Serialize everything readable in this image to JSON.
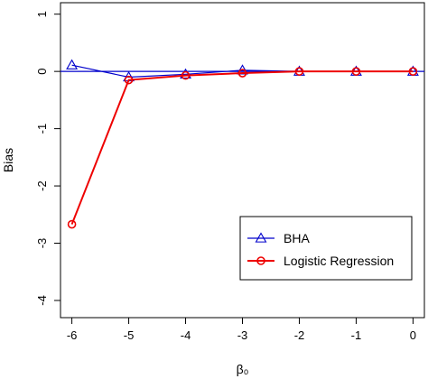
{
  "chart_data": {
    "type": "line",
    "xlabel": "β₀",
    "ylabel": "Bias",
    "x": [
      -6,
      -5,
      -4,
      -3,
      -2,
      -1,
      0
    ],
    "xlim": [
      -6.2,
      0.2
    ],
    "ylim": [
      -4.3,
      1.2
    ],
    "xticks": [
      "-6",
      "-5",
      "-4",
      "-3",
      "-2",
      "-1",
      "0"
    ],
    "yticks": [
      "1",
      "0",
      "-1",
      "-2",
      "-3",
      "-4"
    ],
    "reference_line_y": 0,
    "grid": false,
    "legend_position": "bottom-right",
    "series": [
      {
        "name": "BHA",
        "color": "#0000cc",
        "marker": "triangle",
        "values": [
          0.11,
          -0.1,
          -0.05,
          0.02,
          0.0,
          0.0,
          0.0
        ]
      },
      {
        "name": "Logistic Regression",
        "color": "#ee0000",
        "marker": "circle",
        "values": [
          -2.67,
          -0.15,
          -0.07,
          -0.03,
          0.0,
          0.0,
          0.0
        ]
      }
    ]
  }
}
